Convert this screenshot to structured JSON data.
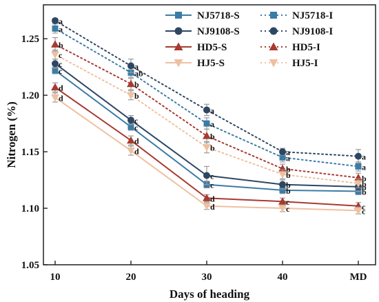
{
  "chart_data": {
    "type": "line",
    "xlabel": "Days of heading",
    "ylabel": "Nitrogen (%)",
    "categories": [
      "10",
      "20",
      "30",
      "40",
      "MD"
    ],
    "ylim": [
      1.05,
      1.28
    ],
    "yticks": [
      "1.05",
      "1.10",
      "1.15",
      "1.20",
      "1.25"
    ],
    "grid": false,
    "legend_position": "top-right",
    "series": [
      {
        "name": "NJ5718-S",
        "color": "#3b7ca6",
        "marker": "square",
        "dashed": false,
        "values": [
          1.222,
          1.172,
          1.121,
          1.116,
          1.115
        ],
        "errors": [
          0.003,
          0.003,
          0.003,
          0.003,
          0.003
        ],
        "labels": [
          "c",
          "c",
          "c",
          "b",
          "b"
        ]
      },
      {
        "name": "NJ9108-S",
        "color": "#2d4763",
        "marker": "circle",
        "dashed": false,
        "values": [
          1.228,
          1.178,
          1.129,
          1.121,
          1.119
        ],
        "errors": [
          0.004,
          0.004,
          0.008,
          0.004,
          0.004
        ],
        "labels": [
          "c",
          "c",
          "c",
          "b",
          "b"
        ]
      },
      {
        "name": "HD5-S",
        "color": "#a83a30",
        "marker": "triangle-up",
        "dashed": false,
        "values": [
          1.207,
          1.16,
          1.109,
          1.106,
          1.102
        ],
        "errors": [
          0.004,
          0.004,
          0.003,
          0.003,
          0.003
        ],
        "labels": [
          "d",
          "d",
          "d",
          "c",
          "c"
        ]
      },
      {
        "name": "HJ5-S",
        "color": "#eec0a0",
        "marker": "triangle-down",
        "dashed": false,
        "values": [
          1.198,
          1.151,
          1.102,
          1.1,
          1.098
        ],
        "errors": [
          0.004,
          0.004,
          0.003,
          0.003,
          0.003
        ],
        "labels": [
          "d",
          "d",
          "d",
          "c",
          "c"
        ]
      },
      {
        "name": "NJ5718-I",
        "color": "#3b7ca6",
        "marker": "square",
        "dashed": true,
        "values": [
          1.259,
          1.22,
          1.175,
          1.145,
          1.137
        ],
        "errors": [
          0.004,
          0.004,
          0.005,
          0.004,
          0.004
        ],
        "labels": [
          "a",
          "ab",
          "a",
          "a",
          "a"
        ]
      },
      {
        "name": "NJ9108-I",
        "color": "#2d4763",
        "marker": "circle",
        "dashed": true,
        "values": [
          1.266,
          1.226,
          1.187,
          1.15,
          1.146
        ],
        "errors": [
          0.002,
          0.006,
          0.005,
          0.003,
          0.006
        ],
        "labels": [
          "a",
          "a",
          "a",
          "a",
          "a"
        ]
      },
      {
        "name": "HD5-I",
        "color": "#a83a30",
        "marker": "triangle-up",
        "dashed": true,
        "values": [
          1.245,
          1.21,
          1.164,
          1.135,
          1.127
        ],
        "errors": [
          0.006,
          0.005,
          0.006,
          0.004,
          0.004
        ],
        "labels": [
          "b",
          "b",
          "b",
          "b",
          "b"
        ]
      },
      {
        "name": "HJ5-I",
        "color": "#eec0a0",
        "marker": "triangle-down",
        "dashed": true,
        "values": [
          1.236,
          1.2,
          1.154,
          1.13,
          1.122
        ],
        "errors": [
          0.004,
          0.004,
          0.005,
          0.004,
          0.004
        ],
        "labels": [
          "c",
          "b",
          "b",
          "b",
          "b"
        ]
      }
    ]
  }
}
